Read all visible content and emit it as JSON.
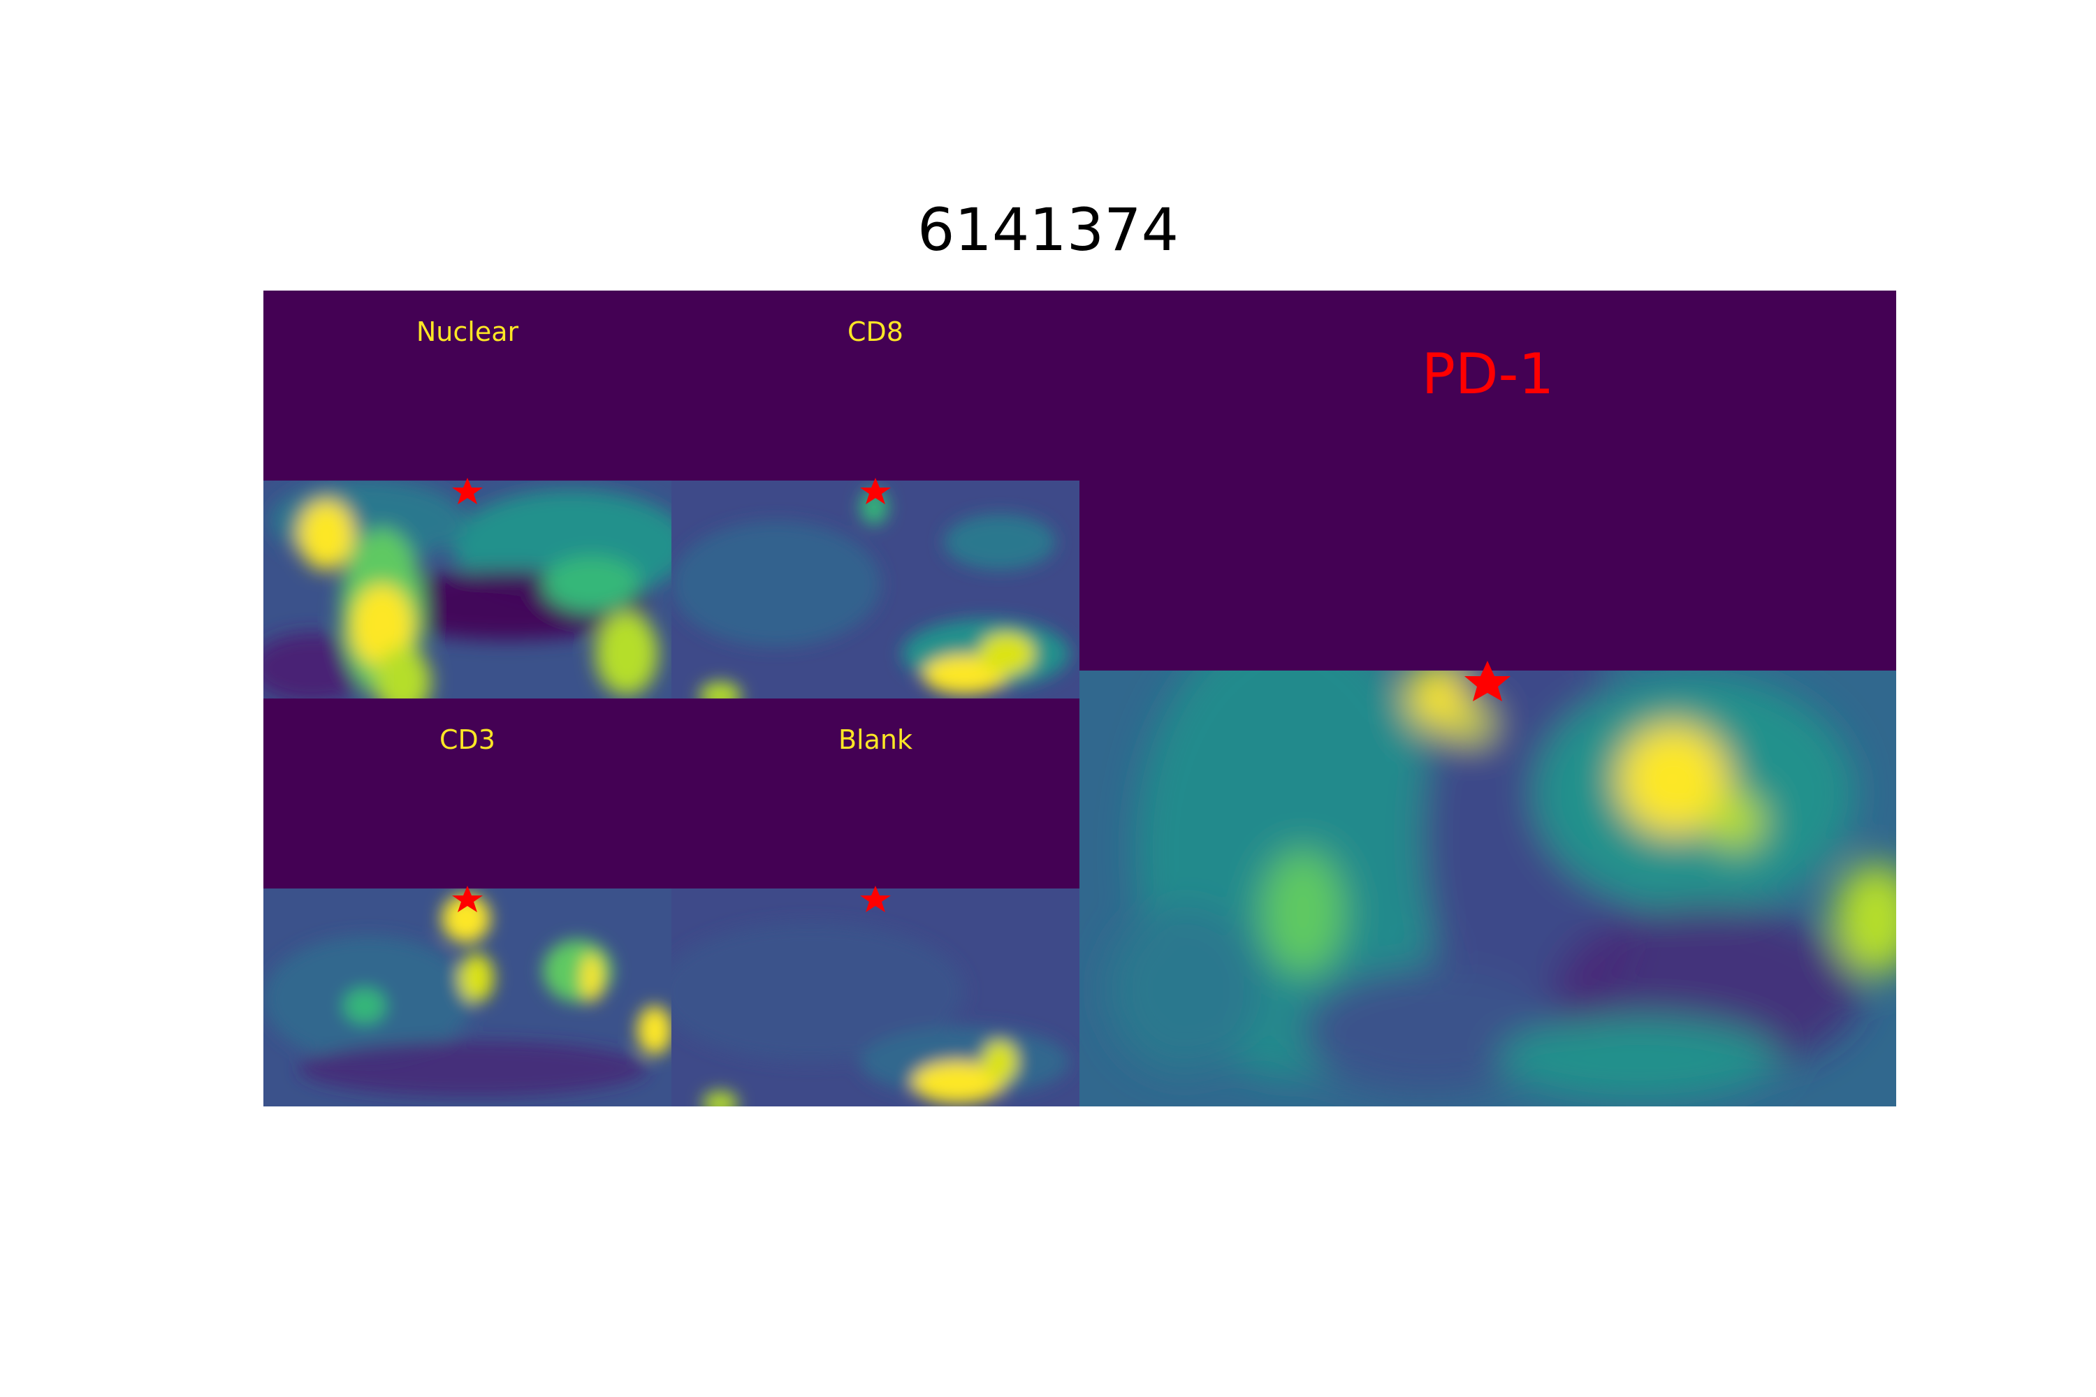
{
  "figure": {
    "title": "6141374"
  },
  "colors": {
    "background_top": "#440154",
    "label_color": "#fde725",
    "pd1_label_color": "#ff0000",
    "star_color": "#ff0000",
    "colormap": "viridis"
  },
  "panels": [
    {
      "id": "nuclear",
      "label": "Nuclear",
      "marker": "red-star"
    },
    {
      "id": "cd8",
      "label": "CD8",
      "marker": "red-star"
    },
    {
      "id": "cd3",
      "label": "CD3",
      "marker": "red-star"
    },
    {
      "id": "blank",
      "label": "Blank",
      "marker": "red-star"
    },
    {
      "id": "pd1",
      "label": "PD-1",
      "marker": "red-star"
    }
  ]
}
